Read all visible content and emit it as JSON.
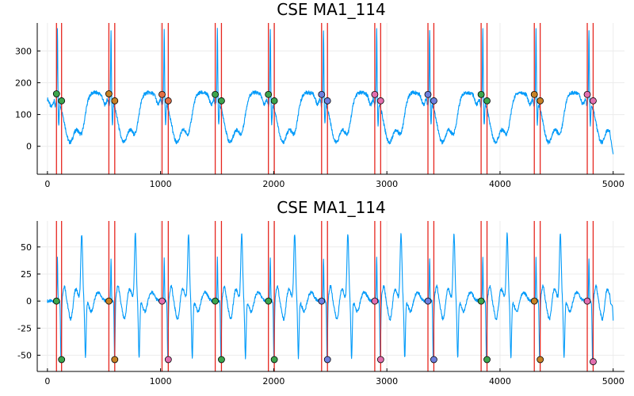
{
  "chart_data": [
    {
      "type": "line",
      "title": "CSE MA1_114",
      "xlabel": "",
      "ylabel": "",
      "xlim": [
        -90,
        5100
      ],
      "ylim": [
        -88,
        388
      ],
      "x_ticks": [
        0,
        1000,
        2000,
        3000,
        4000,
        5000
      ],
      "y_ticks": [
        0,
        100,
        200,
        300
      ],
      "x_tick_labels": [
        "0",
        "1000",
        "2000",
        "3000",
        "4000",
        "5000"
      ],
      "y_tick_labels": [
        "0",
        "100",
        "200",
        "300"
      ],
      "grid": true,
      "legend": "none",
      "signal": {
        "kind": "ecg-raw",
        "x_range": [
          0,
          5000
        ],
        "baseline": 150,
        "r_peak": 375,
        "trough": -78,
        "end_value": -25,
        "beats": [
          88,
          562,
          1032,
          1502,
          1970,
          2440,
          2910,
          3378,
          3848,
          4318,
          4786
        ]
      },
      "vlines": [
        80,
        125,
        543,
        595,
        1013,
        1068,
        1483,
        1538,
        1953,
        2005,
        2423,
        2475,
        2893,
        2945,
        3363,
        3415,
        3833,
        3885,
        4303,
        4355,
        4771,
        4823
      ],
      "marker_series": [
        {
          "points": [
            [
              80,
              165
            ],
            [
              125,
              143
            ],
            [
              543,
              165
            ],
            [
              595,
              143
            ],
            [
              1013,
              163
            ],
            [
              1068,
              143
            ],
            [
              1483,
              163
            ],
            [
              1538,
              143
            ],
            [
              1953,
              163
            ],
            [
              2005,
              143
            ],
            [
              2423,
              163
            ],
            [
              2475,
              143
            ],
            [
              2893,
              163
            ],
            [
              2945,
              143
            ],
            [
              3363,
              163
            ],
            [
              3415,
              143
            ],
            [
              3833,
              163
            ],
            [
              3885,
              143
            ],
            [
              4303,
              163
            ],
            [
              4355,
              143
            ],
            [
              4771,
              163
            ],
            [
              4823,
              143
            ]
          ],
          "colors": [
            "#3da44d",
            "#3da44d",
            "#c68125",
            "#c68125",
            "#e26f46",
            "#e26f46",
            "#3da44d",
            "#3da44d",
            "#3da44d",
            "#3da44d",
            "#6f7fdd",
            "#6f7fdd",
            "#e26fae",
            "#e26fae",
            "#6f7fdd",
            "#6f7fdd",
            "#3da44d",
            "#3da44d",
            "#c68125",
            "#c68125",
            "#e26fae",
            "#e26fae"
          ]
        }
      ],
      "colors": {
        "line": "#009af9",
        "vline": "#e6261f",
        "grid": "#ececec",
        "axis": "#000000",
        "marker_edge": "#000000"
      }
    },
    {
      "type": "line",
      "title": "CSE MA1_114",
      "xlabel": "",
      "ylabel": "",
      "xlim": [
        -90,
        5100
      ],
      "ylim": [
        -65,
        74
      ],
      "x_ticks": [
        0,
        1000,
        2000,
        3000,
        4000,
        5000
      ],
      "y_ticks": [
        -50,
        -25,
        0,
        25,
        50
      ],
      "x_tick_labels": [
        "0",
        "1000",
        "2000",
        "3000",
        "4000",
        "5000"
      ],
      "y_tick_labels": [
        "-50",
        "-25",
        "0",
        "25",
        "50"
      ],
      "grid": true,
      "legend": "none",
      "signal": {
        "kind": "ecg-filtered",
        "x_range": [
          0,
          5000
        ],
        "baseline": 0,
        "r_peak": 44,
        "s_trough": -55,
        "second_peak": 68,
        "end_value": -18,
        "beats": [
          88,
          562,
          1032,
          1502,
          1970,
          2440,
          2910,
          3378,
          3848,
          4318,
          4786
        ]
      },
      "vlines": [
        80,
        125,
        543,
        595,
        1013,
        1068,
        1483,
        1538,
        1953,
        2005,
        2423,
        2475,
        2893,
        2945,
        3363,
        3415,
        3833,
        3885,
        4303,
        4355,
        4771,
        4823
      ],
      "marker_series": [
        {
          "points": [
            [
              80,
              0
            ],
            [
              125,
              -54
            ],
            [
              543,
              0
            ],
            [
              595,
              -54
            ],
            [
              1013,
              0
            ],
            [
              1068,
              -54
            ],
            [
              1483,
              0
            ],
            [
              1538,
              -54
            ],
            [
              1953,
              0
            ],
            [
              2005,
              -54
            ],
            [
              2423,
              0
            ],
            [
              2475,
              -54
            ],
            [
              2893,
              0
            ],
            [
              2945,
              -54
            ],
            [
              3363,
              0
            ],
            [
              3415,
              -54
            ],
            [
              3833,
              0
            ],
            [
              3885,
              -54
            ],
            [
              4303,
              0
            ],
            [
              4355,
              -54
            ],
            [
              4771,
              0
            ],
            [
              4823,
              -56
            ]
          ],
          "colors": [
            "#3da44d",
            "#3da44d",
            "#c68125",
            "#c68125",
            "#e26fae",
            "#e26fae",
            "#3da44d",
            "#3da44d",
            "#3da44d",
            "#3da44d",
            "#6f7fdd",
            "#6f7fdd",
            "#e26fae",
            "#e26fae",
            "#6f7fdd",
            "#6f7fdd",
            "#3da44d",
            "#3da44d",
            "#c68125",
            "#c68125",
            "#e26fae",
            "#e26fae"
          ]
        }
      ],
      "colors": {
        "line": "#009af9",
        "vline": "#e6261f",
        "grid": "#ececec",
        "axis": "#000000",
        "marker_edge": "#000000"
      }
    }
  ]
}
